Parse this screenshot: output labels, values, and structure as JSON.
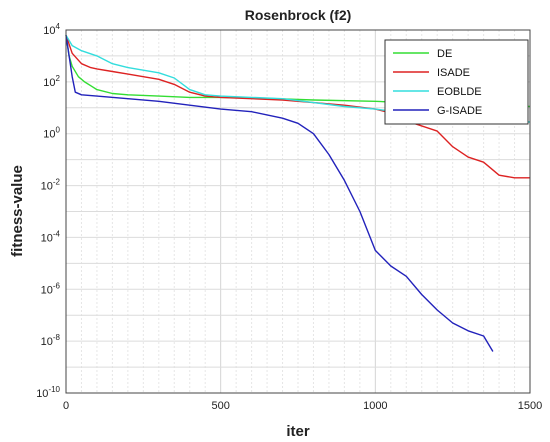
{
  "chart_data": {
    "type": "line",
    "title": "Rosenbrock (f2)",
    "xlabel": "iter",
    "ylabel": "fitness-value",
    "xlim": [
      0,
      1500
    ],
    "ylim_log10": [
      -10,
      4
    ],
    "y_scale": "log",
    "grid": true,
    "legend_position": "top-right",
    "x_ticks": [
      0,
      500,
      1000,
      1500
    ],
    "y_ticks": [
      {
        "exp": 4,
        "base": "10",
        "sup": "4"
      },
      {
        "exp": 2,
        "base": "10",
        "sup": "2"
      },
      {
        "exp": 0,
        "base": "10",
        "sup": "0"
      },
      {
        "exp": -2,
        "base": "10",
        "sup": "-2"
      },
      {
        "exp": -4,
        "base": "10",
        "sup": "-4"
      },
      {
        "exp": -6,
        "base": "10",
        "sup": "-6"
      },
      {
        "exp": -8,
        "base": "10",
        "sup": "-8"
      },
      {
        "exp": -10,
        "base": "10",
        "sup": "-10"
      }
    ],
    "series": [
      {
        "name": "DE",
        "color": "#33dd33",
        "x": [
          0,
          10,
          20,
          40,
          60,
          80,
          100,
          150,
          200,
          300,
          400,
          500,
          600,
          800,
          1000,
          1200,
          1400,
          1500
        ],
        "log10_y": [
          3.8,
          3.0,
          2.6,
          2.2,
          2.0,
          1.85,
          1.7,
          1.55,
          1.5,
          1.45,
          1.4,
          1.4,
          1.38,
          1.3,
          1.25,
          1.15,
          1.1,
          1.05
        ]
      },
      {
        "name": "ISADE",
        "color": "#dd2222",
        "x": [
          0,
          20,
          50,
          80,
          100,
          150,
          200,
          250,
          300,
          350,
          400,
          450,
          500,
          600,
          700,
          800,
          900,
          1000,
          1050,
          1100,
          1150,
          1200,
          1250,
          1300,
          1350,
          1400,
          1450,
          1500
        ],
        "log10_y": [
          3.8,
          3.1,
          2.7,
          2.55,
          2.5,
          2.4,
          2.3,
          2.2,
          2.1,
          1.9,
          1.6,
          1.45,
          1.4,
          1.35,
          1.3,
          1.2,
          1.1,
          0.95,
          0.8,
          0.5,
          0.3,
          0.1,
          -0.5,
          -0.9,
          -1.1,
          -1.6,
          -1.7,
          -1.7
        ]
      },
      {
        "name": "EOBLDE",
        "color": "#33dddd",
        "x": [
          0,
          20,
          50,
          100,
          150,
          200,
          250,
          300,
          350,
          400,
          450,
          500,
          600,
          700,
          800,
          900,
          1000,
          1100,
          1200,
          1300,
          1400,
          1500
        ],
        "log10_y": [
          3.8,
          3.4,
          3.2,
          3.0,
          2.7,
          2.55,
          2.45,
          2.35,
          2.15,
          1.7,
          1.5,
          1.45,
          1.4,
          1.35,
          1.2,
          1.05,
          0.95,
          0.8,
          0.65,
          0.55,
          0.5,
          0.45
        ]
      },
      {
        "name": "G-ISADE",
        "color": "#2222bb",
        "x": [
          0,
          10,
          20,
          30,
          50,
          100,
          200,
          300,
          400,
          500,
          600,
          700,
          750,
          800,
          850,
          900,
          950,
          1000,
          1050,
          1100,
          1150,
          1200,
          1250,
          1300,
          1350,
          1380
        ],
        "log10_y": [
          3.8,
          3.0,
          2.2,
          1.6,
          1.5,
          1.45,
          1.35,
          1.25,
          1.1,
          0.95,
          0.85,
          0.6,
          0.4,
          0.0,
          -0.8,
          -1.8,
          -3.0,
          -4.5,
          -5.1,
          -5.5,
          -6.2,
          -6.8,
          -7.3,
          -7.6,
          -7.8,
          -8.4
        ]
      }
    ]
  }
}
